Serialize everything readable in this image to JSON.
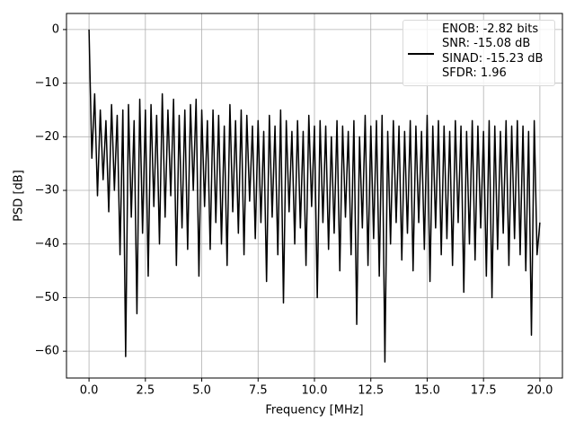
{
  "chart_data": {
    "type": "line",
    "xlabel": "Frequency [MHz]",
    "ylabel": "PSD [dB]",
    "xlim": [
      -1.0,
      21.0
    ],
    "ylim": [
      -65,
      3
    ],
    "xticks": [
      {
        "value": 0,
        "label": "0.0"
      },
      {
        "value": 2.5,
        "label": "2.5"
      },
      {
        "value": 5,
        "label": "5.0"
      },
      {
        "value": 7.5,
        "label": "7.5"
      },
      {
        "value": 10,
        "label": "10.0"
      },
      {
        "value": 12.5,
        "label": "12.5"
      },
      {
        "value": 15,
        "label": "15.0"
      },
      {
        "value": 17.5,
        "label": "17.5"
      },
      {
        "value": 20,
        "label": "20.0"
      }
    ],
    "yticks": [
      0,
      {
        "value": -10,
        "label": "−10"
      },
      {
        "value": -20,
        "label": "−20"
      },
      {
        "value": -30,
        "label": "−30"
      },
      {
        "value": -40,
        "label": "−40"
      },
      {
        "value": -50,
        "label": "−50"
      },
      {
        "value": -60,
        "label": "−60"
      }
    ],
    "grid": true,
    "legend": "upper right",
    "x": [
      0,
      0.125,
      0.25,
      0.375,
      0.5,
      0.625,
      0.75,
      0.875,
      1,
      1.125,
      1.25,
      1.375,
      1.5,
      1.625,
      1.75,
      1.875,
      2,
      2.125,
      2.25,
      2.375,
      2.5,
      2.625,
      2.75,
      2.875,
      3,
      3.125,
      3.25,
      3.375,
      3.5,
      3.625,
      3.75,
      3.875,
      4,
      4.125,
      4.25,
      4.375,
      4.5,
      4.625,
      4.75,
      4.875,
      5,
      5.125,
      5.25,
      5.375,
      5.5,
      5.625,
      5.75,
      5.875,
      6,
      6.125,
      6.25,
      6.375,
      6.5,
      6.625,
      6.75,
      6.875,
      7,
      7.125,
      7.25,
      7.375,
      7.5,
      7.625,
      7.75,
      7.875,
      8,
      8.125,
      8.25,
      8.375,
      8.5,
      8.625,
      8.75,
      8.875,
      9,
      9.125,
      9.25,
      9.375,
      9.5,
      9.625,
      9.75,
      9.875,
      10,
      10.125,
      10.25,
      10.375,
      10.5,
      10.625,
      10.75,
      10.875,
      11,
      11.125,
      11.25,
      11.375,
      11.5,
      11.625,
      11.75,
      11.875,
      12,
      12.125,
      12.25,
      12.375,
      12.5,
      12.625,
      12.75,
      12.875,
      13,
      13.125,
      13.25,
      13.375,
      13.5,
      13.625,
      13.75,
      13.875,
      14,
      14.125,
      14.25,
      14.375,
      14.5,
      14.625,
      14.75,
      14.875,
      15,
      15.125,
      15.25,
      15.375,
      15.5,
      15.625,
      15.75,
      15.875,
      16,
      16.125,
      16.25,
      16.375,
      16.5,
      16.625,
      16.75,
      16.875,
      17,
      17.125,
      17.25,
      17.375,
      17.5,
      17.625,
      17.75,
      17.875,
      18,
      18.125,
      18.25,
      18.375,
      18.5,
      18.625,
      18.75,
      18.875,
      19,
      19.125,
      19.25,
      19.375,
      19.5,
      19.625,
      19.75,
      19.875,
      20
    ],
    "series": [
      {
        "name": "ENOB: -2.82 bits\nSNR: -15.08 dB\nSINAD: -15.23 dB\nSFDR: 1.96",
        "color": "#000000",
        "values": [
          0,
          -24,
          -12,
          -31,
          -15,
          -28,
          -17,
          -34,
          -14,
          -30,
          -16,
          -42,
          -15,
          -61,
          -14,
          -35,
          -17,
          -53,
          -13,
          -38,
          -15,
          -46,
          -14,
          -33,
          -16,
          -40,
          -12,
          -35,
          -15,
          -31,
          -13,
          -44,
          -16,
          -37,
          -15,
          -41,
          -14,
          -30,
          -13,
          -46,
          -15,
          -33,
          -17,
          -41,
          -15,
          -36,
          -16,
          -40,
          -18,
          -44,
          -14,
          -34,
          -17,
          -38,
          -15,
          -42,
          -16,
          -32,
          -18,
          -39,
          -17,
          -36,
          -19,
          -47,
          -16,
          -35,
          -18,
          -42,
          -15,
          -51,
          -17,
          -34,
          -19,
          -40,
          -17,
          -37,
          -19,
          -44,
          -16,
          -33,
          -18,
          -50,
          -17,
          -36,
          -18,
          -41,
          -20,
          -38,
          -17,
          -45,
          -18,
          -35,
          -19,
          -42,
          -17,
          -55,
          -20,
          -37,
          -16,
          -44,
          -18,
          -39,
          -17,
          -46,
          -16,
          -62,
          -19,
          -40,
          -17,
          -36,
          -18,
          -43,
          -19,
          -38,
          -17,
          -45,
          -18,
          -36,
          -19,
          -41,
          -16,
          -47,
          -18,
          -37,
          -17,
          -42,
          -18,
          -39,
          -19,
          -44,
          -17,
          -36,
          -18,
          -49,
          -19,
          -40,
          -17,
          -43,
          -18,
          -37,
          -19,
          -46,
          -17,
          -50,
          -18,
          -41,
          -19,
          -38,
          -17,
          -44,
          -18,
          -39,
          -17,
          -42,
          -18,
          -45,
          -19,
          -57,
          -17,
          -42,
          -36
        ]
      }
    ]
  }
}
